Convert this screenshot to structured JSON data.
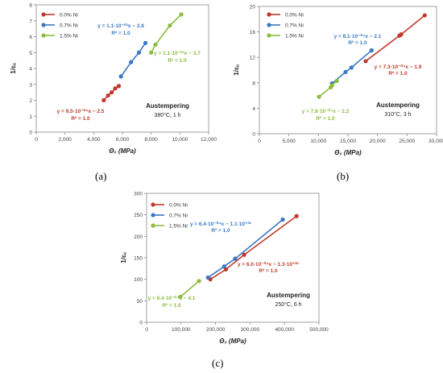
{
  "chart_data": [
    {
      "type": "scatter",
      "panel": "(a)",
      "xlabel": "Θ₀ (MPa)",
      "ylabel": "1/εᵤ",
      "xlim": [
        0,
        12000
      ],
      "ylim": [
        0,
        8
      ],
      "xticks": [
        "0",
        "2,000",
        "4,000",
        "6,000",
        "8,000",
        "10,000",
        "12,000"
      ],
      "yticks": [
        "0",
        "1",
        "2",
        "3",
        "4",
        "5",
        "6",
        "7",
        "8"
      ],
      "grid": false,
      "legend_position": "top-left",
      "series": [
        {
          "name": "0.0% Ni",
          "color": "#c0392b",
          "x": [
            4700,
            5000,
            5250,
            5500,
            5750
          ],
          "y": [
            2.0,
            2.3,
            2.5,
            2.75,
            2.9
          ],
          "equation": "y = 9.5·10⁻⁰⁴x − 2.5",
          "r2": "R² = 1.0"
        },
        {
          "name": "0.7% Ni",
          "color": "#3a78c2",
          "x": [
            5900,
            6600,
            7150,
            7600
          ],
          "y": [
            3.5,
            4.4,
            5.0,
            5.6
          ],
          "equation": "y = 1.1·10⁻⁰³x − 2.8",
          "r2": "R² = 1.0"
        },
        {
          "name": "1.5% Ni",
          "color": "#8cbc3e",
          "x": [
            8000,
            8300,
            9300,
            10100
          ],
          "y": [
            5.0,
            5.5,
            6.7,
            7.4
          ],
          "equation": "y = 1.1·10⁻⁰³x − 3.7",
          "r2": "R² = 1.0"
        }
      ],
      "annotation": [
        "Austempering",
        "380°C, 1 h"
      ]
    },
    {
      "type": "scatter",
      "panel": "(b)",
      "xlabel": "Θ₀ (MPa)",
      "ylabel": "1/εᵤ",
      "xlim": [
        0,
        30000
      ],
      "ylim": [
        0,
        20
      ],
      "xticks": [
        "0",
        "5,000",
        "10,000",
        "15,000",
        "20,000",
        "25,000",
        "30,000"
      ],
      "yticks": [
        "0",
        "4",
        "8",
        "12",
        "16",
        "20"
      ],
      "grid": false,
      "legend_position": "top-left",
      "series": [
        {
          "name": "0.0% Ni",
          "color": "#c0392b",
          "x": [
            18000,
            23700,
            24000,
            28000
          ],
          "y": [
            11.4,
            15.4,
            15.6,
            18.6
          ],
          "equation": "y = 7.3·10⁻⁰⁴x − 1.9",
          "r2": "R² = 1.0"
        },
        {
          "name": "0.7% Ni",
          "color": "#3a78c2",
          "x": [
            12300,
            14600,
            15600,
            19000
          ],
          "y": [
            7.9,
            9.7,
            10.4,
            13.1
          ],
          "equation": "y = 8.1·10⁻⁰⁴x − 2.1",
          "r2": "R² = 1.0"
        },
        {
          "name": "1.5% Ni",
          "color": "#8cbc3e",
          "x": [
            10100,
            12100,
            12300,
            13100
          ],
          "y": [
            5.8,
            7.3,
            7.6,
            8.3
          ],
          "equation": "y = 7.8·10⁻⁰⁴x − 2.2",
          "r2": "R² = 1.0"
        }
      ],
      "annotation": [
        "Austempering",
        "310°C, 3 h"
      ]
    },
    {
      "type": "scatter",
      "panel": "(c)",
      "xlabel": "Θ₀ (MPa)",
      "ylabel": "1/εᵤ",
      "xlim": [
        0,
        500000
      ],
      "ylim": [
        0,
        300
      ],
      "xticks": [
        "0",
        "100,000",
        "200,000",
        "300,000",
        "400,000",
        "500,000"
      ],
      "yticks": [
        "0",
        "50",
        "100",
        "150",
        "200",
        "250",
        "300"
      ],
      "grid": false,
      "legend_position": "top-left",
      "series": [
        {
          "name": "0.0% Ni",
          "color": "#c0392b",
          "x": [
            185000,
            230000,
            283000,
            435000
          ],
          "y": [
            100,
            123,
            157,
            247
          ],
          "equation": "y = 6.0·10⁻⁰⁴x − 1.3·10⁺⁰¹",
          "r2": "R² = 1.0"
        },
        {
          "name": "0.7% Ni",
          "color": "#3a78c2",
          "x": [
            178000,
            225000,
            257000,
            395000
          ],
          "y": [
            104,
            130,
            148,
            239
          ],
          "equation": "y = 6.4·10⁻⁰⁴x − 1.1·10⁺⁰¹",
          "r2": "R² = 1.0"
        },
        {
          "name": "1.5% Ni",
          "color": "#8cbc3e",
          "x": [
            98000,
            152000
          ],
          "y": [
            59,
            96
          ],
          "equation": "y = 6.4·10⁻⁰⁴x − 4.1",
          "r2": "R² = 1.0"
        }
      ],
      "annotation": [
        "Austempering",
        "250°C, 6 h"
      ]
    }
  ]
}
